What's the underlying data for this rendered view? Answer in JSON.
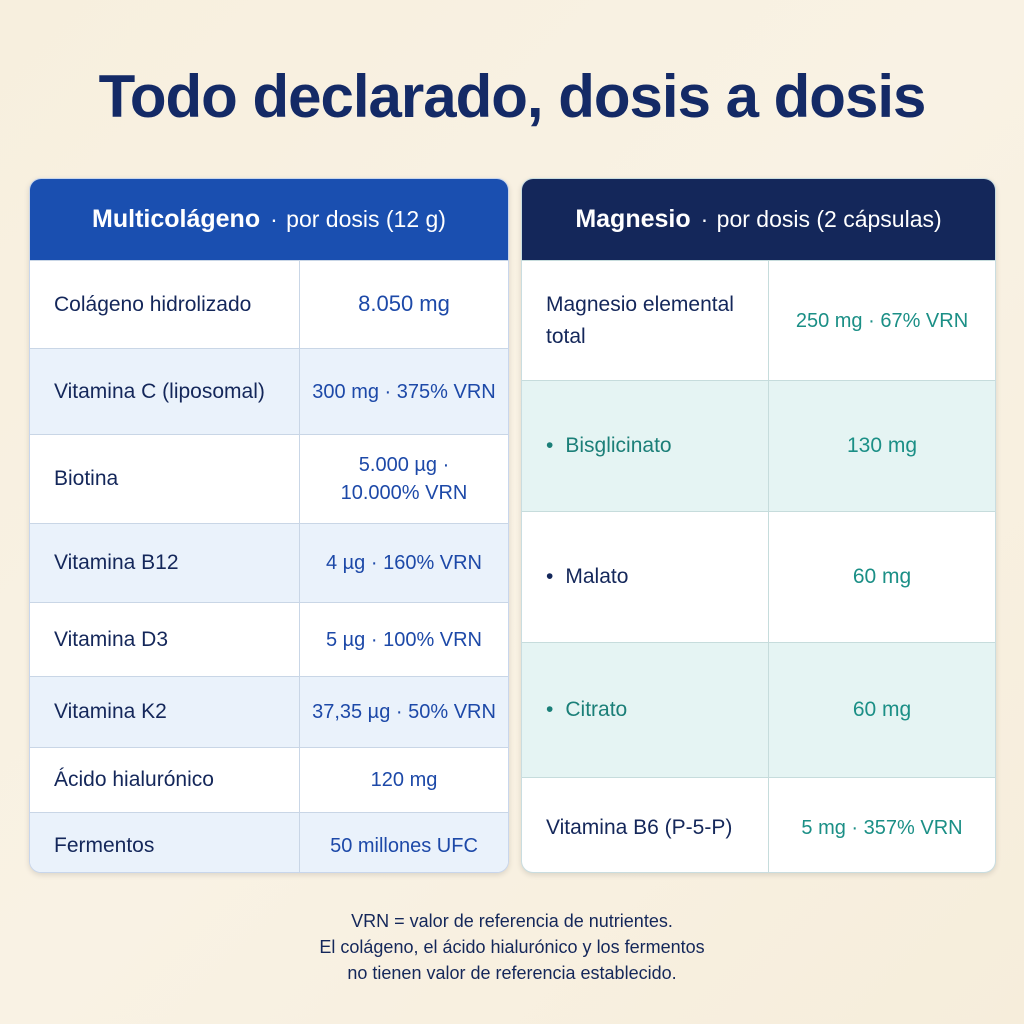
{
  "title": "Todo declarado, dosis a dosis",
  "left_card": {
    "name": "Multicolágeno",
    "separator": "·",
    "subtitle": "por dosis (12 g)",
    "rows": [
      {
        "label": "Colágeno hidrolizado",
        "value": "8.050 mg"
      },
      {
        "label": "Vitamina C (liposomal)",
        "value": "300 mg · 375% VRN"
      },
      {
        "label": "Biotina",
        "value": "5.000 µg · 10.000% VRN"
      },
      {
        "label": "Vitamina B12",
        "value": "4 µg · 160% VRN"
      },
      {
        "label": "Vitamina D3",
        "value": "5 µg · 100% VRN"
      },
      {
        "label": "Vitamina K2",
        "value": "37,35 µg · 50% VRN"
      },
      {
        "label": "Ácido hialurónico",
        "value": "120 mg"
      },
      {
        "label": "Fermentos",
        "value": "50 millones UFC"
      }
    ]
  },
  "right_card": {
    "name": "Magnesio",
    "separator": "·",
    "subtitle": "por dosis (2 cápsulas)",
    "rows": [
      {
        "label": "Magnesio elemental total",
        "value": "250 mg · 67% VRN"
      },
      {
        "bullet": "•",
        "label": "Bisglicinato",
        "value": "130 mg"
      },
      {
        "bullet": "•",
        "label": "Malato",
        "value": "60 mg"
      },
      {
        "bullet": "•",
        "label": "Citrato",
        "value": "60 mg"
      },
      {
        "label": "Vitamina B6 (P-5-P)",
        "value": "5 mg · 357% VRN"
      }
    ]
  },
  "footer": {
    "line1": "VRN = valor de referencia de nutrientes.",
    "line2": "El colágeno, el ácido hialurónico y los fermentos",
    "line3": "no tienen valor de referencia establecido."
  }
}
